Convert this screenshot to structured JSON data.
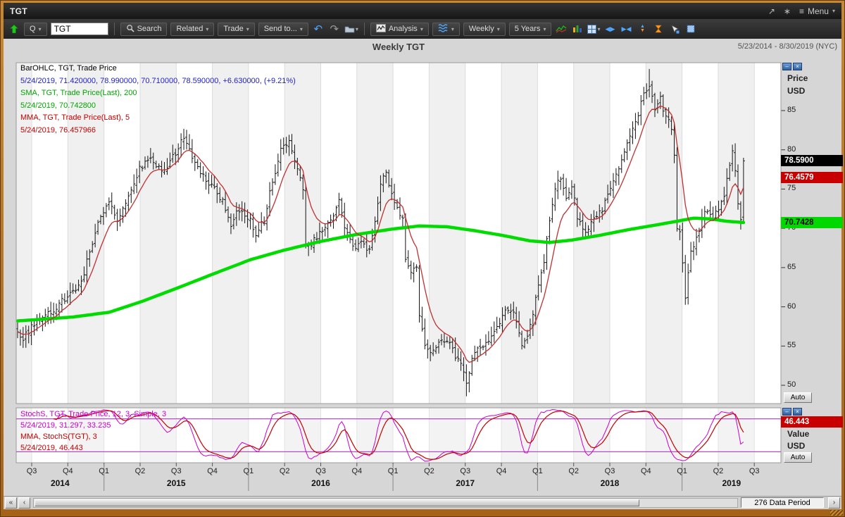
{
  "window": {
    "title": "TGT",
    "menu": "Menu"
  },
  "toolbar": {
    "symbol_mode": "Q",
    "symbol_input": "TGT",
    "search_label": "Search",
    "related_label": "Related",
    "trade_label": "Trade",
    "send_to_label": "Send to...",
    "analysis_label": "Analysis",
    "period_label": "Weekly",
    "range_label": "5 Years"
  },
  "header": {
    "title": "Weekly TGT",
    "date_range": "5/23/2014 - 8/30/2019 (NYC)"
  },
  "main_panel": {
    "axis_label_line1": "Price",
    "axis_label_line2": "USD",
    "auto_label": "Auto",
    "callouts": {
      "last_price": "78.5900",
      "mma_value": "76.4579",
      "sma_value": "70.7428"
    },
    "legend": [
      {
        "text": "BarOHLC, TGT, Trade Price",
        "color": "#000000"
      },
      {
        "text": "5/24/2019, 71.420000, 78.990000, 70.710000, 78.590000, +6.630000, (+9.21%)",
        "color": "#2121c8"
      },
      {
        "text": "SMA, TGT, Trade Price(Last), 200",
        "color": "#00a500"
      },
      {
        "text": "5/24/2019, 70.742800",
        "color": "#00a500"
      },
      {
        "text": "MMA, TGT, Trade Price(Last), 5",
        "color": "#c40000"
      },
      {
        "text": "5/24/2019, 76.457966",
        "color": "#c40000"
      }
    ]
  },
  "stoch_panel": {
    "axis_label_line1": "Value",
    "axis_label_line2": "USD",
    "auto_label": "Auto",
    "callout": "46.443",
    "legend": [
      {
        "text": "StochS, TGT, Trade Price, 12, 3, Simple, 3",
        "color": "#c800c8"
      },
      {
        "text": "5/24/2019, 31.297, 33.235",
        "color": "#c800c8"
      },
      {
        "text": "MMA, StochS(TGT), 3",
        "color": "#c40000"
      },
      {
        "text": "5/24/2019, 46.443",
        "color": "#c40000"
      }
    ]
  },
  "scrollbar": {
    "data_period_label": "276 Data Period"
  },
  "chart_data": {
    "type": "ohlc",
    "title": "Weekly TGT",
    "symbol": "TGT",
    "interval": "weekly",
    "total_weeks_axis": 276,
    "data_weeks": 263,
    "ylim": [
      47.6,
      91.2
    ],
    "yticks": [
      85,
      80,
      75,
      70,
      65,
      60,
      55,
      50
    ],
    "xaxis_quarters": [
      "Q3",
      "Q4",
      "Q1",
      "Q2",
      "Q3",
      "Q4",
      "Q1",
      "Q2",
      "Q3",
      "Q4",
      "Q1",
      "Q2",
      "Q3",
      "Q4",
      "Q1",
      "Q2",
      "Q3",
      "Q4",
      "Q1",
      "Q2",
      "Q3"
    ],
    "xaxis_years": [
      "2014",
      "2015",
      "2016",
      "2017",
      "2018",
      "2019"
    ],
    "first_quarter_boundary_week": 5.6,
    "weeks_per_quarter": 13.04,
    "last_bar": {
      "date": "5/24/2019",
      "open": 71.42,
      "high": 78.99,
      "low": 70.71,
      "close": 78.59,
      "change": "+6.630000",
      "change_pct": "(+9.21%)"
    },
    "close_keyframes": [
      [
        0,
        56.5
      ],
      [
        2,
        56.0
      ],
      [
        5,
        57.5
      ],
      [
        9,
        58.5
      ],
      [
        13,
        59.5
      ],
      [
        17,
        61.0
      ],
      [
        21,
        62.0
      ],
      [
        24,
        64.5
      ],
      [
        27,
        68.0
      ],
      [
        30,
        71.5
      ],
      [
        33,
        73.5
      ],
      [
        36,
        71.0
      ],
      [
        40,
        74.0
      ],
      [
        44,
        77.5
      ],
      [
        48,
        79.0
      ],
      [
        52,
        77.0
      ],
      [
        56,
        79.0
      ],
      [
        60,
        81.5
      ],
      [
        63,
        79.0
      ],
      [
        66,
        77.0
      ],
      [
        70,
        75.5
      ],
      [
        74,
        73.5
      ],
      [
        77,
        70.5
      ],
      [
        80,
        72.5
      ],
      [
        83,
        71.5
      ],
      [
        86,
        69.5
      ],
      [
        89,
        71.0
      ],
      [
        92,
        76.0
      ],
      [
        95,
        80.0
      ],
      [
        98,
        81.0
      ],
      [
        101,
        77.5
      ],
      [
        103,
        75.0
      ],
      [
        104,
        67.5
      ],
      [
        107,
        68.5
      ],
      [
        110,
        69.5
      ],
      [
        113,
        71.0
      ],
      [
        116,
        73.5
      ],
      [
        118,
        70.0
      ],
      [
        121,
        67.5
      ],
      [
        124,
        68.5
      ],
      [
        127,
        67.0
      ],
      [
        129,
        71.0
      ],
      [
        131,
        75.5
      ],
      [
        133,
        77.0
      ],
      [
        135,
        74.0
      ],
      [
        137,
        72.5
      ],
      [
        139,
        71.5
      ],
      [
        140,
        66.0
      ],
      [
        142,
        64.5
      ],
      [
        144,
        65.5
      ],
      [
        145,
        58.5
      ],
      [
        147,
        55.5
      ],
      [
        149,
        54.5
      ],
      [
        152,
        55.5
      ],
      [
        155,
        56.0
      ],
      [
        157,
        54.5
      ],
      [
        160,
        52.5
      ],
      [
        162,
        50.5
      ],
      [
        164,
        53.0
      ],
      [
        166,
        54.5
      ],
      [
        169,
        55.5
      ],
      [
        172,
        56.5
      ],
      [
        175,
        59.0
      ],
      [
        178,
        59.5
      ],
      [
        180,
        58.5
      ],
      [
        182,
        55.0
      ],
      [
        184,
        56.5
      ],
      [
        186,
        59.0
      ],
      [
        188,
        62.5
      ],
      [
        190,
        66.0
      ],
      [
        192,
        71.0
      ],
      [
        194,
        75.0
      ],
      [
        196,
        76.5
      ],
      [
        198,
        73.5
      ],
      [
        200,
        75.5
      ],
      [
        202,
        71.5
      ],
      [
        205,
        69.5
      ],
      [
        208,
        71.5
      ],
      [
        211,
        72.5
      ],
      [
        214,
        75.5
      ],
      [
        217,
        78.0
      ],
      [
        220,
        80.5
      ],
      [
        223,
        83.5
      ],
      [
        226,
        87.0
      ],
      [
        228,
        88.0
      ],
      [
        230,
        85.5
      ],
      [
        232,
        86.5
      ],
      [
        234,
        84.0
      ],
      [
        236,
        83.0
      ],
      [
        237,
        79.0
      ],
      [
        238,
        69.5
      ],
      [
        239,
        70.0
      ],
      [
        240,
        66.0
      ],
      [
        241,
        61.5
      ],
      [
        243,
        67.0
      ],
      [
        245,
        68.5
      ],
      [
        247,
        71.5
      ],
      [
        249,
        72.5
      ],
      [
        251,
        71.0
      ],
      [
        253,
        72.5
      ],
      [
        255,
        74.0
      ],
      [
        256,
        76.0
      ],
      [
        258,
        80.0
      ],
      [
        259,
        77.5
      ],
      [
        260,
        73.0
      ],
      [
        261,
        71.5
      ],
      [
        262,
        78.59
      ]
    ],
    "sma200_keyframes": [
      [
        0,
        58.2
      ],
      [
        20,
        58.7
      ],
      [
        33,
        59.3
      ],
      [
        45,
        60.7
      ],
      [
        57,
        62.3
      ],
      [
        70,
        64.1
      ],
      [
        84,
        66.0
      ],
      [
        96,
        67.2
      ],
      [
        109,
        68.3
      ],
      [
        122,
        69.2
      ],
      [
        135,
        69.9
      ],
      [
        145,
        70.3
      ],
      [
        155,
        70.2
      ],
      [
        165,
        69.7
      ],
      [
        175,
        69.1
      ],
      [
        185,
        68.4
      ],
      [
        192,
        68.2
      ],
      [
        200,
        68.5
      ],
      [
        210,
        69.1
      ],
      [
        220,
        69.8
      ],
      [
        230,
        70.4
      ],
      [
        238,
        70.9
      ],
      [
        244,
        71.3
      ],
      [
        250,
        71.2
      ],
      [
        256,
        70.9
      ],
      [
        262,
        70.74
      ]
    ],
    "sma200_last": 70.7428,
    "mma5_last": 76.457966,
    "stoch": {
      "length": 12,
      "smoothing": 3,
      "percent_k_last": 31.297,
      "percent_d_last": 33.235,
      "mma_last": 46.443,
      "overbought": 80,
      "oversold": 20
    },
    "colors": {
      "bar": "#151515",
      "sma": "#00dc00",
      "mma": "#c03030",
      "stoch_k": "#cc00cc",
      "stoch_mma": "#c40000",
      "stoch_bands": "#b14fc4",
      "callout_last_bg": "#000000",
      "callout_mma_bg": "#c80000",
      "callout_sma_bg": "#00d800"
    }
  }
}
